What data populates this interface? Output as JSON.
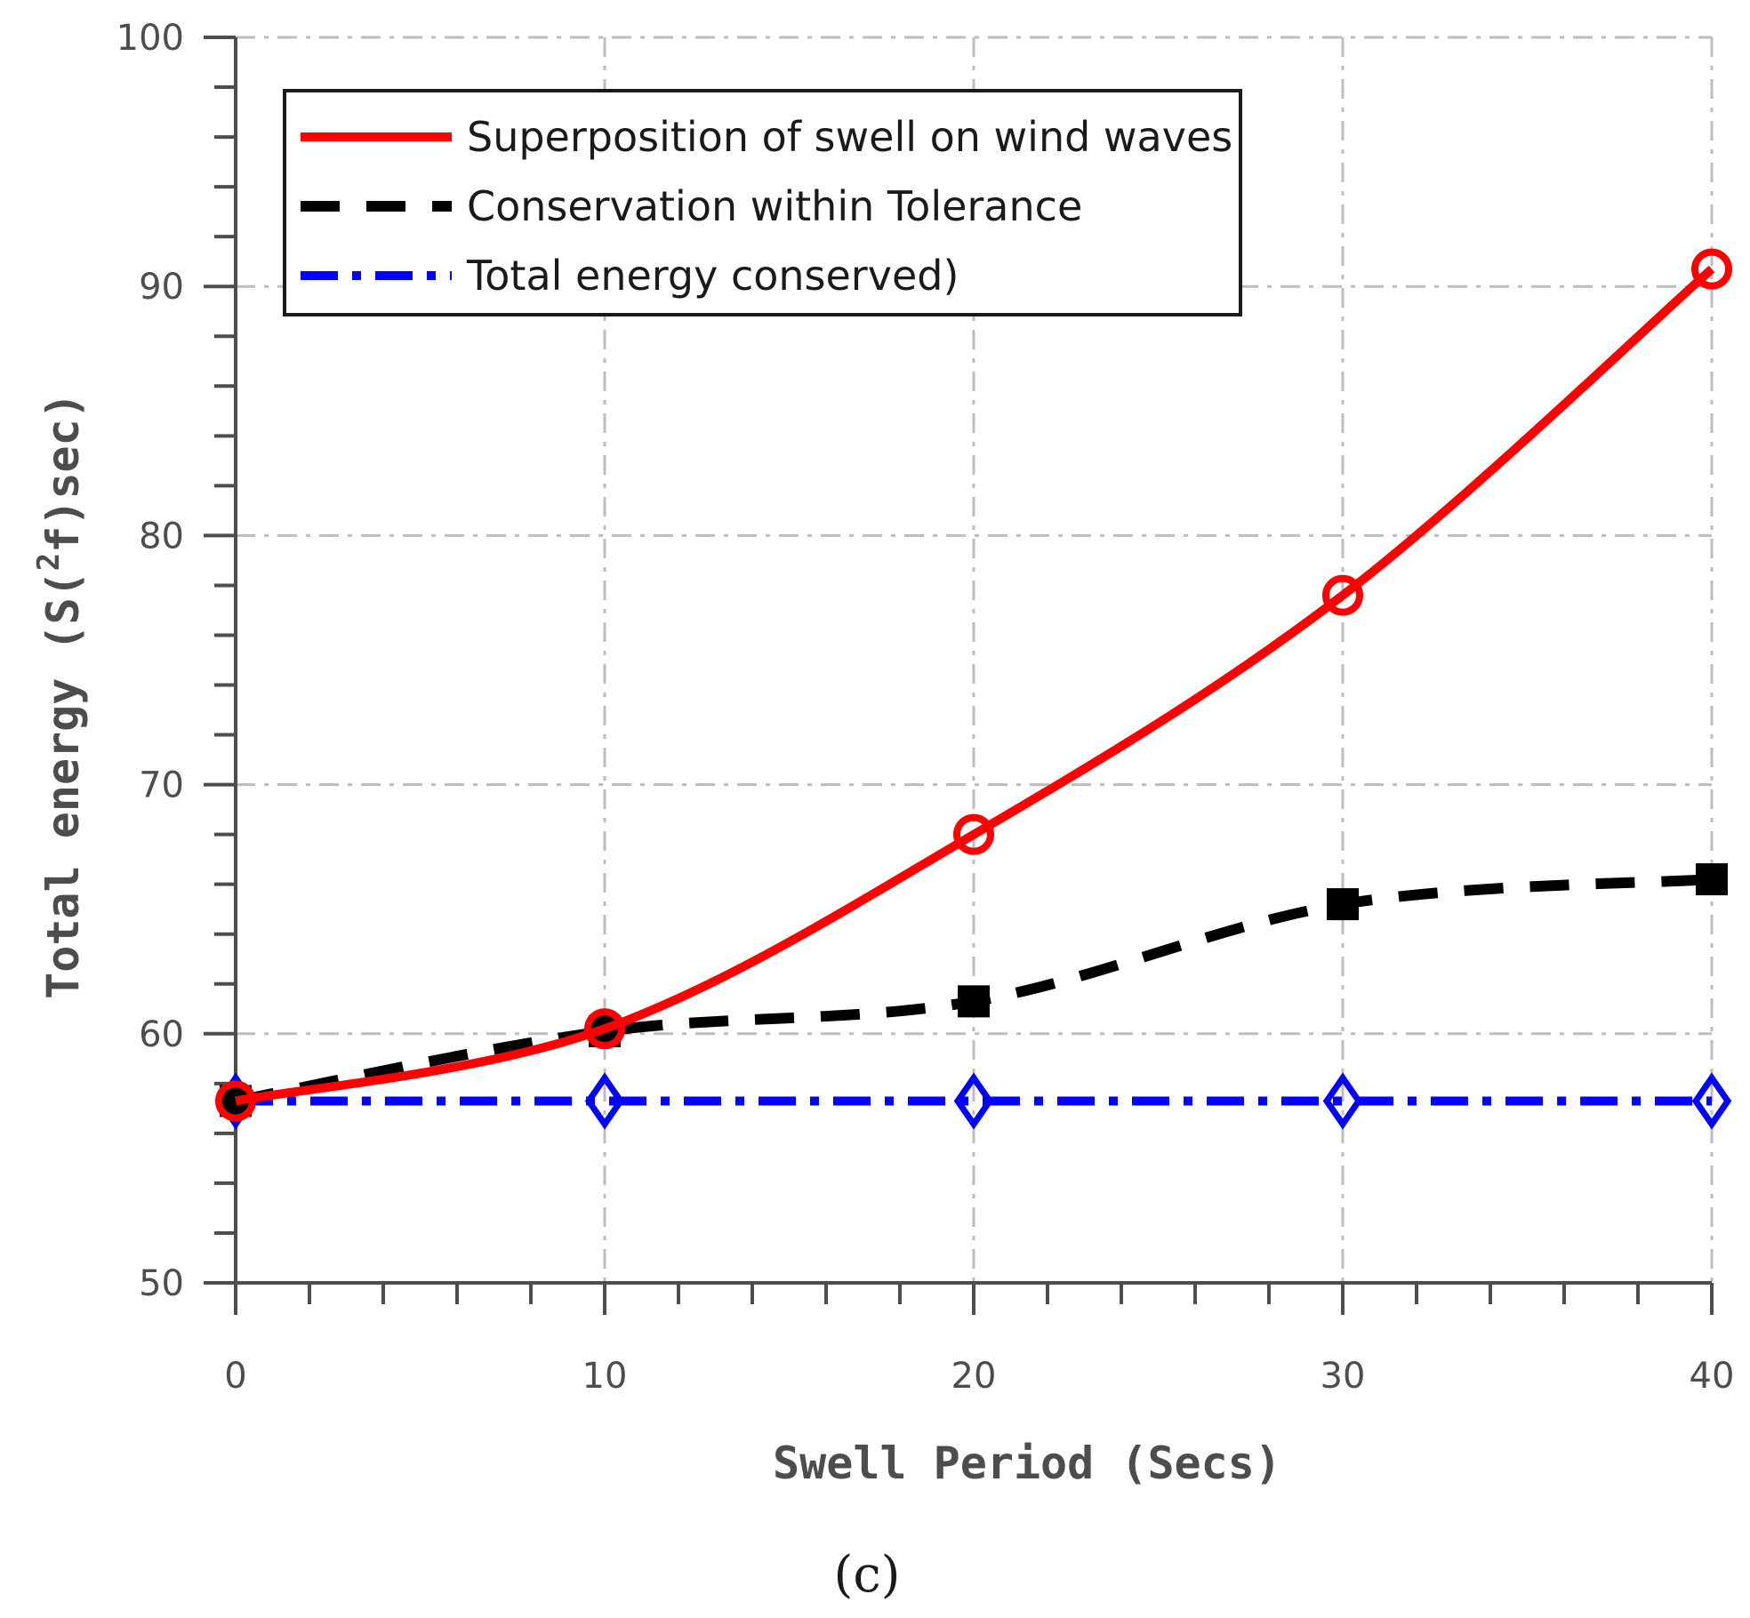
{
  "chart_data": {
    "type": "line",
    "xlabel": "Swell Period (Secs)",
    "ylabel": "Total energy (S(f)sec)",
    "ylabel_super": "2",
    "xlim": [
      0,
      40
    ],
    "ylim": [
      50,
      100
    ],
    "x_ticks": [
      0,
      10,
      20,
      30,
      40
    ],
    "y_ticks": [
      50,
      60,
      70,
      80,
      90,
      100
    ],
    "grid": true,
    "legend_position": "top-left",
    "panel_label": "(c)",
    "series": [
      {
        "name": "Superposition of swell on wind waves",
        "color": "#ff0000",
        "style": "solid",
        "marker": "circle",
        "x": [
          0,
          10,
          20,
          30,
          40
        ],
        "y": [
          57.3,
          60.2,
          68.0,
          77.6,
          90.7
        ]
      },
      {
        "name": "Conservation within Tolerance",
        "color": "#000000",
        "style": "dashed",
        "marker": "square",
        "x": [
          0,
          10,
          20,
          30,
          40
        ],
        "y": [
          57.3,
          60.1,
          61.3,
          65.2,
          66.2
        ]
      },
      {
        "name": "Total energy conserved)",
        "color": "#0000ff",
        "style": "dashdot",
        "marker": "diamond",
        "x": [
          0,
          10,
          20,
          30,
          40
        ],
        "y": [
          57.3,
          57.3,
          57.3,
          57.3,
          57.3
        ]
      }
    ]
  }
}
